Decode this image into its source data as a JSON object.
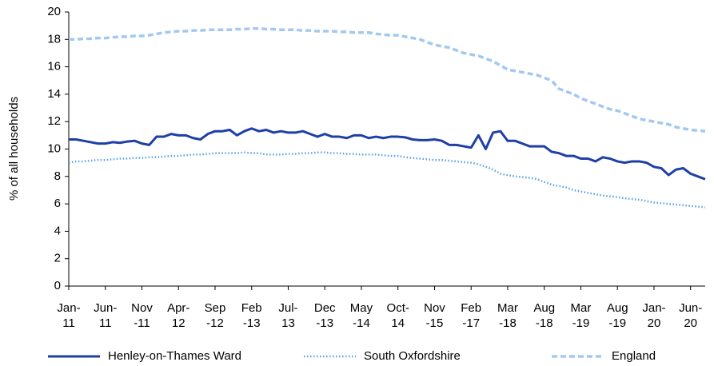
{
  "chart_data": {
    "type": "line",
    "y_label": "% of all households",
    "categories": [
      "Jan-\n11",
      null,
      null,
      null,
      null,
      "Jun-\n11",
      null,
      null,
      null,
      null,
      "Nov\n-11",
      null,
      null,
      null,
      null,
      "Apr-\n12",
      null,
      null,
      null,
      null,
      "Sep\n-12",
      null,
      null,
      null,
      null,
      "Feb\n-13",
      null,
      null,
      null,
      null,
      "Jul-\n13",
      null,
      null,
      null,
      null,
      "Dec\n-13",
      null,
      null,
      null,
      null,
      "May\n-14",
      null,
      null,
      null,
      null,
      "Oct-\n14",
      null,
      null,
      null,
      null,
      "Nov\n-15",
      null,
      null,
      null,
      null,
      "Feb\n-17",
      null,
      null,
      null,
      null,
      "Mar\n-18",
      null,
      null,
      null,
      null,
      "Aug\n-18",
      null,
      null,
      null,
      null,
      "Mar\n-19",
      null,
      null,
      null,
      null,
      "Aug\n-19",
      null,
      null,
      null,
      null,
      "Jan-\n20",
      null,
      null,
      null,
      null,
      "Jun-\n20",
      null,
      null
    ],
    "series": [
      {
        "name": "Henley-on-Thames Ward",
        "color": "#1f3fa6",
        "style": "solid",
        "values": [
          10.7,
          10.7,
          10.6,
          10.5,
          10.4,
          10.4,
          10.5,
          10.45,
          10.55,
          10.6,
          10.4,
          10.3,
          10.9,
          10.9,
          11.1,
          11.0,
          11.0,
          10.8,
          10.7,
          11.1,
          11.3,
          11.3,
          11.4,
          11.0,
          11.3,
          11.5,
          11.3,
          11.4,
          11.2,
          11.3,
          11.2,
          11.2,
          11.3,
          11.1,
          10.9,
          11.1,
          10.9,
          10.9,
          10.8,
          11.0,
          11.0,
          10.8,
          10.9,
          10.8,
          10.9,
          10.9,
          10.85,
          10.7,
          10.65,
          10.65,
          10.7,
          10.6,
          10.3,
          10.3,
          10.2,
          10.1,
          11.0,
          10.0,
          11.2,
          11.3,
          10.6,
          10.6,
          10.4,
          10.2,
          10.2,
          10.2,
          9.8,
          9.7,
          9.5,
          9.5,
          9.3,
          9.3,
          9.1,
          9.4,
          9.3,
          9.1,
          9.0,
          9.1,
          9.1,
          9.0,
          8.7,
          8.6,
          8.1,
          8.5,
          8.6,
          8.2,
          8.0,
          7.8
        ]
      },
      {
        "name": "South Oxfordshire",
        "color": "#5aa2e4",
        "style": "dotted",
        "values": [
          9.0,
          9.1,
          9.1,
          9.15,
          9.2,
          9.2,
          9.25,
          9.3,
          9.3,
          9.35,
          9.35,
          9.4,
          9.4,
          9.45,
          9.5,
          9.5,
          9.55,
          9.6,
          9.6,
          9.65,
          9.7,
          9.7,
          9.7,
          9.7,
          9.75,
          9.7,
          9.7,
          9.6,
          9.6,
          9.6,
          9.65,
          9.65,
          9.7,
          9.7,
          9.75,
          9.75,
          9.7,
          9.7,
          9.65,
          9.65,
          9.6,
          9.6,
          9.6,
          9.55,
          9.5,
          9.5,
          9.4,
          9.35,
          9.3,
          9.25,
          9.2,
          9.2,
          9.15,
          9.1,
          9.05,
          9.0,
          8.9,
          8.7,
          8.5,
          8.2,
          8.1,
          8.0,
          7.95,
          7.9,
          7.8,
          7.6,
          7.4,
          7.3,
          7.2,
          7.0,
          6.9,
          6.8,
          6.7,
          6.6,
          6.55,
          6.5,
          6.4,
          6.35,
          6.3,
          6.2,
          6.1,
          6.05,
          6.0,
          5.95,
          5.9,
          5.85,
          5.8,
          5.75
        ]
      },
      {
        "name": "England",
        "color": "#a3c9f0",
        "style": "dashed",
        "values": [
          18.0,
          18.0,
          18.05,
          18.05,
          18.1,
          18.1,
          18.15,
          18.2,
          18.2,
          18.25,
          18.25,
          18.3,
          18.4,
          18.5,
          18.55,
          18.6,
          18.6,
          18.65,
          18.65,
          18.7,
          18.7,
          18.7,
          18.7,
          18.75,
          18.75,
          18.8,
          18.8,
          18.75,
          18.75,
          18.7,
          18.7,
          18.7,
          18.65,
          18.65,
          18.6,
          18.6,
          18.6,
          18.55,
          18.55,
          18.5,
          18.5,
          18.5,
          18.4,
          18.35,
          18.3,
          18.3,
          18.2,
          18.1,
          18.0,
          17.8,
          17.6,
          17.5,
          17.4,
          17.2,
          17.0,
          16.9,
          16.8,
          16.6,
          16.4,
          16.1,
          15.8,
          15.7,
          15.6,
          15.5,
          15.4,
          15.2,
          15.0,
          14.4,
          14.2,
          14.0,
          13.7,
          13.5,
          13.3,
          13.1,
          12.9,
          12.8,
          12.6,
          12.4,
          12.2,
          12.1,
          12.0,
          11.9,
          11.8,
          11.6,
          11.5,
          11.4,
          11.35,
          11.3
        ]
      }
    ],
    "ylim": [
      0,
      20
    ],
    "yticks": [
      0,
      2,
      4,
      6,
      8,
      10,
      12,
      14,
      16,
      18,
      20
    ],
    "grid": false,
    "legend": "bottom"
  }
}
